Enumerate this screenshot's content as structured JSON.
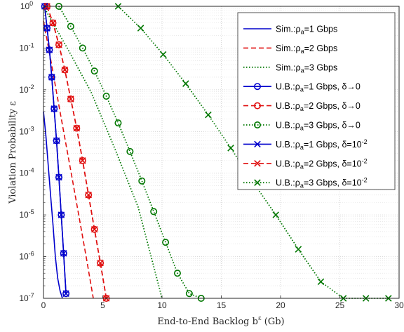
{
  "chart_data": {
    "type": "line",
    "xlabel": "End-to-End Backlog b",
    "xlabel_sup": "ε",
    "xlabel_unit": "(Gb)",
    "ylabel": "Violation Probability ε",
    "xlim": [
      0,
      30
    ],
    "ylim": [
      1e-07,
      1
    ],
    "yscale": "log",
    "grid": true,
    "legend_position": "top-right",
    "x_ticks": [
      "0",
      "5",
      "10",
      "15",
      "20",
      "25",
      "30"
    ],
    "y_ticks": [
      {
        "base": "10",
        "exp": "0"
      },
      {
        "base": "10",
        "exp": "-1"
      },
      {
        "base": "10",
        "exp": "-2"
      },
      {
        "base": "10",
        "exp": "-3"
      },
      {
        "base": "10",
        "exp": "-4"
      },
      {
        "base": "10",
        "exp": "-5"
      },
      {
        "base": "10",
        "exp": "-6"
      },
      {
        "base": "10",
        "exp": "-7"
      }
    ],
    "series": [
      {
        "legend": {
          "pre": "Sim.:ρ",
          "sub": "a",
          "post": "=1 Gbps",
          "sup": ""
        },
        "color": "#0000cc",
        "dash": "solid",
        "marker": "none",
        "x": [
          0,
          0.2,
          0.4,
          0.6,
          0.8,
          1.0,
          1.2,
          1.4,
          1.6
        ],
        "y": [
          0.003,
          0.0008,
          0.00015,
          3e-05,
          6e-06,
          1e-06,
          3e-07,
          1.5e-07,
          1e-07
        ]
      },
      {
        "legend": {
          "pre": "Sim.:ρ",
          "sub": "a",
          "post": "=2 Gbps",
          "sup": ""
        },
        "color": "#e01010",
        "dash": "dashed",
        "marker": "none",
        "x": [
          0,
          0.6,
          1.2,
          1.8,
          2.4,
          3.0,
          3.6,
          4.2
        ],
        "y": [
          0.45,
          0.055,
          0.006,
          0.0007,
          8e-05,
          9e-06,
          1e-06,
          1e-07
        ]
      },
      {
        "legend": {
          "pre": "Sim.:ρ",
          "sub": "a",
          "post": "=3 Gbps",
          "sup": ""
        },
        "color": "#007700",
        "dash": "dotted",
        "marker": "none",
        "x": [
          0,
          2,
          4,
          6,
          8,
          10
        ],
        "y": [
          1,
          0.1,
          0.009,
          0.0004,
          1.5e-05,
          1e-07
        ]
      },
      {
        "legend": {
          "pre": "U.B.:ρ",
          "sub": "a",
          "post": "=1 Gbps, δ→0",
          "sup": ""
        },
        "color": "#0000cc",
        "dash": "solid",
        "marker": "circle",
        "x": [
          0.1,
          0.3,
          0.5,
          0.7,
          0.9,
          1.1,
          1.3,
          1.5,
          1.7,
          1.9
        ],
        "y": [
          1,
          0.3,
          0.09,
          0.02,
          0.0035,
          0.0006,
          8e-05,
          1e-05,
          1.2e-06,
          1.3e-07
        ]
      },
      {
        "legend": {
          "pre": "U.B.:ρ",
          "sub": "a",
          "post": "=2 Gbps, δ→0",
          "sup": ""
        },
        "color": "#e01010",
        "dash": "dashed",
        "marker": "circle",
        "x": [
          0.3,
          0.8,
          1.3,
          1.8,
          2.3,
          2.8,
          3.3,
          3.8,
          4.3,
          4.8,
          5.3
        ],
        "y": [
          1,
          0.4,
          0.12,
          0.03,
          0.006,
          0.0012,
          0.0002,
          3e-05,
          4.5e-06,
          7e-07,
          1e-07
        ]
      },
      {
        "legend": {
          "pre": "U.B.:ρ",
          "sub": "a",
          "post": "=3 Gbps, δ→0",
          "sup": ""
        },
        "color": "#007700",
        "dash": "dotted",
        "marker": "circle",
        "x": [
          1.3,
          2.3,
          3.3,
          4.3,
          5.3,
          6.3,
          7.3,
          8.3,
          9.3,
          10.3,
          11.3,
          12.3,
          13.3
        ],
        "y": [
          1,
          0.33,
          0.1,
          0.028,
          0.007,
          0.0016,
          0.00033,
          6.5e-05,
          1.2e-05,
          2.2e-06,
          4e-07,
          1.3e-07,
          1e-07
        ]
      },
      {
        "legend": {
          "pre": "U.B.:ρ",
          "sub": "a",
          "post": "=1 Gbps, δ=10",
          "sup": "-2"
        },
        "color": "#0000cc",
        "dash": "solid",
        "marker": "x",
        "x": [
          0.1,
          0.3,
          0.5,
          0.7,
          0.9,
          1.1,
          1.3,
          1.5,
          1.7,
          1.9
        ],
        "y": [
          1,
          0.3,
          0.09,
          0.02,
          0.0035,
          0.0006,
          8e-05,
          1e-05,
          1.2e-06,
          1.3e-07
        ]
      },
      {
        "legend": {
          "pre": "U.B.:ρ",
          "sub": "a",
          "post": "=2 Gbps, δ=10",
          "sup": "-2"
        },
        "color": "#e01010",
        "dash": "dashed",
        "marker": "x",
        "x": [
          0.3,
          0.8,
          1.3,
          1.8,
          2.3,
          2.8,
          3.3,
          3.8,
          4.3,
          4.8,
          5.3
        ],
        "y": [
          1,
          0.4,
          0.12,
          0.03,
          0.006,
          0.0012,
          0.0002,
          3e-05,
          4.5e-06,
          7e-07,
          1e-07
        ]
      },
      {
        "legend": {
          "pre": "U.B.:ρ",
          "sub": "a",
          "post": "=3 Gbps, δ=10",
          "sup": "-2"
        },
        "color": "#007700",
        "dash": "dotted",
        "marker": "x",
        "x": [
          6.3,
          8.2,
          10.1,
          12.0,
          13.9,
          15.8,
          17.7,
          19.6,
          21.5,
          23.4,
          25.3,
          27.2,
          29.1
        ],
        "y": [
          1,
          0.3,
          0.07,
          0.014,
          0.0025,
          0.0004,
          6e-05,
          1e-05,
          1.5e-06,
          2.5e-07,
          1e-07,
          1e-07,
          1e-07
        ]
      }
    ]
  }
}
